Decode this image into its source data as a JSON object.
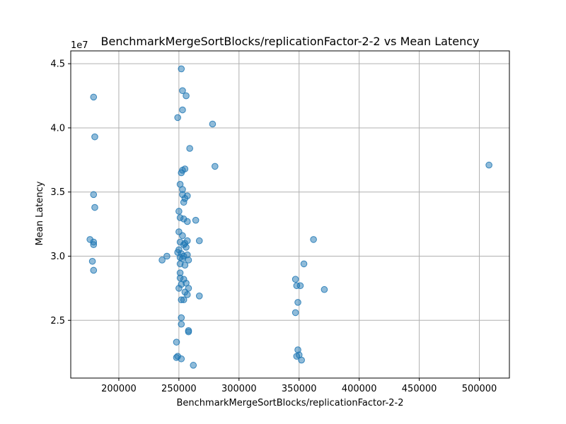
{
  "chart_data": {
    "type": "scatter",
    "title": "BenchmarkMergeSortBlocks/replicationFactor-2-2 vs Mean Latency",
    "xlabel": "BenchmarkMergeSortBlocks/replicationFactor-2-2",
    "ylabel": "Mean Latency",
    "y_offset_label": "1e7",
    "xlim": [
      160000,
      525000
    ],
    "ylim": [
      20500000,
      46000000
    ],
    "x_ticks": [
      200000,
      250000,
      300000,
      350000,
      400000,
      450000,
      500000
    ],
    "x_tick_labels": [
      "200000",
      "250000",
      "300000",
      "350000",
      "400000",
      "450000",
      "500000"
    ],
    "y_ticks": [
      25000000,
      30000000,
      35000000,
      40000000,
      45000000
    ],
    "y_tick_labels": [
      "2.5",
      "3.0",
      "3.5",
      "4.0",
      "4.5"
    ],
    "grid": true,
    "marker_color": "#1f77b4",
    "marker_alpha": 0.5,
    "series": [
      {
        "points": [
          [
            179000,
            42400000
          ],
          [
            180000,
            39300000
          ],
          [
            179000,
            34800000
          ],
          [
            180000,
            33800000
          ],
          [
            176000,
            31300000
          ],
          [
            179000,
            31100000
          ],
          [
            179000,
            30900000
          ],
          [
            178000,
            29600000
          ],
          [
            179000,
            28900000
          ],
          [
            252000,
            44600000
          ],
          [
            253000,
            42900000
          ],
          [
            256000,
            42500000
          ],
          [
            253000,
            41400000
          ],
          [
            249000,
            40800000
          ],
          [
            278000,
            40300000
          ],
          [
            259000,
            38400000
          ],
          [
            280000,
            37000000
          ],
          [
            255000,
            36800000
          ],
          [
            253000,
            36700000
          ],
          [
            252000,
            36500000
          ],
          [
            251000,
            35600000
          ],
          [
            253000,
            35200000
          ],
          [
            257000,
            34700000
          ],
          [
            253000,
            34800000
          ],
          [
            255000,
            34500000
          ],
          [
            254000,
            34200000
          ],
          [
            250000,
            33500000
          ],
          [
            251000,
            33000000
          ],
          [
            254000,
            32900000
          ],
          [
            257000,
            32700000
          ],
          [
            264000,
            32800000
          ],
          [
            250000,
            31900000
          ],
          [
            253000,
            31600000
          ],
          [
            251000,
            31100000
          ],
          [
            255000,
            31000000
          ],
          [
            257000,
            31200000
          ],
          [
            254000,
            30900000
          ],
          [
            256000,
            30700000
          ],
          [
            267000,
            31200000
          ],
          [
            250000,
            30500000
          ],
          [
            249000,
            30300000
          ],
          [
            252000,
            30200000
          ],
          [
            251000,
            29900000
          ],
          [
            254000,
            30000000
          ],
          [
            257000,
            30100000
          ],
          [
            253000,
            29800000
          ],
          [
            258000,
            29700000
          ],
          [
            240000,
            30000000
          ],
          [
            236000,
            29700000
          ],
          [
            251000,
            29400000
          ],
          [
            255000,
            29300000
          ],
          [
            251000,
            28700000
          ],
          [
            251000,
            28300000
          ],
          [
            254000,
            28200000
          ],
          [
            252000,
            27800000
          ],
          [
            256000,
            27900000
          ],
          [
            250000,
            27500000
          ],
          [
            258000,
            27500000
          ],
          [
            255000,
            27200000
          ],
          [
            257000,
            27000000
          ],
          [
            267000,
            26900000
          ],
          [
            252000,
            26600000
          ],
          [
            254000,
            26600000
          ],
          [
            252000,
            25200000
          ],
          [
            252000,
            24700000
          ],
          [
            258000,
            24200000
          ],
          [
            258000,
            24100000
          ],
          [
            248000,
            23300000
          ],
          [
            249000,
            22200000
          ],
          [
            248000,
            22100000
          ],
          [
            252000,
            22000000
          ],
          [
            262000,
            21500000
          ],
          [
            347000,
            28200000
          ],
          [
            348000,
            27700000
          ],
          [
            351000,
            27700000
          ],
          [
            354000,
            29400000
          ],
          [
            362000,
            31300000
          ],
          [
            371000,
            27400000
          ],
          [
            349000,
            26400000
          ],
          [
            347000,
            25600000
          ],
          [
            349000,
            22700000
          ],
          [
            350000,
            22300000
          ],
          [
            348000,
            22200000
          ],
          [
            352000,
            21900000
          ],
          [
            508000,
            37100000
          ]
        ]
      }
    ]
  }
}
